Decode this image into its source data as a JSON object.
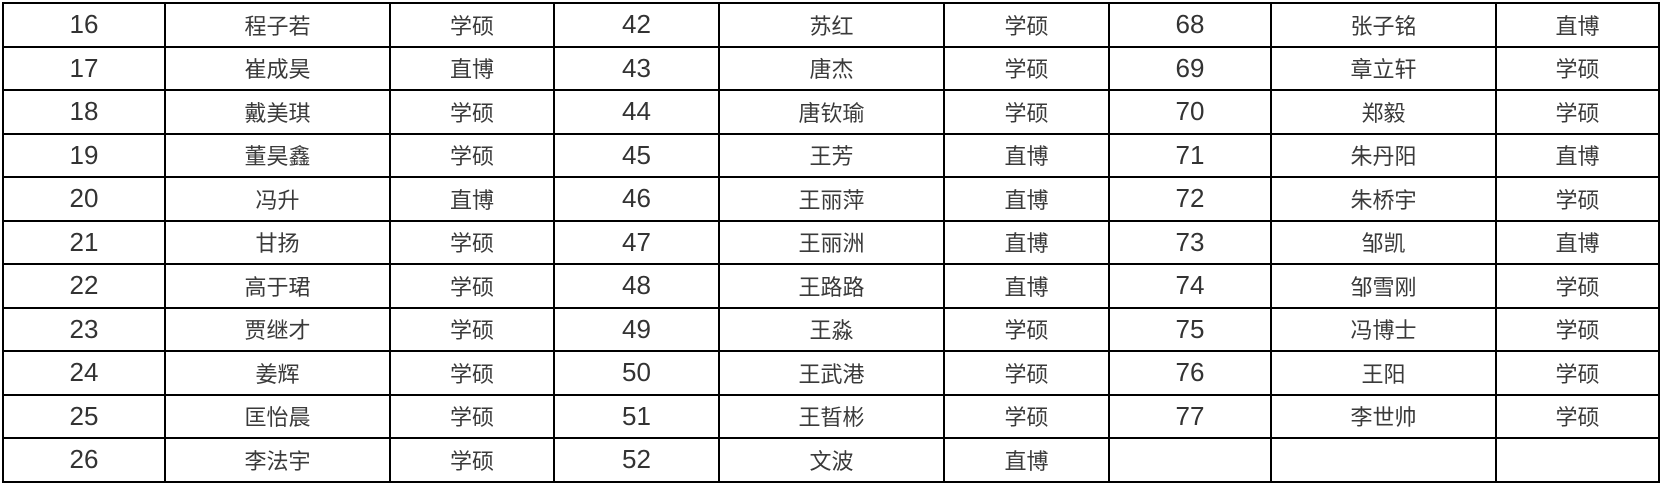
{
  "colors": {
    "text_cjk": "#3a3a3a",
    "text_num": "#333333",
    "border": "#000000",
    "background": "#ffffff"
  },
  "degree_values_used": [
    "学硕",
    "直博"
  ],
  "table": {
    "groups_per_row": 3,
    "rows": [
      {
        "cells": [
          {
            "no": "16",
            "name": "程子若",
            "type": "学硕"
          },
          {
            "no": "42",
            "name": "苏红",
            "type": "学硕"
          },
          {
            "no": "68",
            "name": "张子铭",
            "type": "直博"
          }
        ]
      },
      {
        "cells": [
          {
            "no": "17",
            "name": "崔成昊",
            "type": "直博"
          },
          {
            "no": "43",
            "name": "唐杰",
            "type": "学硕"
          },
          {
            "no": "69",
            "name": "章立轩",
            "type": "学硕"
          }
        ]
      },
      {
        "cells": [
          {
            "no": "18",
            "name": "戴美琪",
            "type": "学硕"
          },
          {
            "no": "44",
            "name": "唐钦瑜",
            "type": "学硕"
          },
          {
            "no": "70",
            "name": "郑毅",
            "type": "学硕"
          }
        ]
      },
      {
        "cells": [
          {
            "no": "19",
            "name": "董昊鑫",
            "type": "学硕"
          },
          {
            "no": "45",
            "name": "王芳",
            "type": "直博"
          },
          {
            "no": "71",
            "name": "朱丹阳",
            "type": "直博"
          }
        ]
      },
      {
        "cells": [
          {
            "no": "20",
            "name": "冯升",
            "type": "直博"
          },
          {
            "no": "46",
            "name": "王丽萍",
            "type": "直博"
          },
          {
            "no": "72",
            "name": "朱桥宇",
            "type": "学硕"
          }
        ]
      },
      {
        "cells": [
          {
            "no": "21",
            "name": "甘扬",
            "type": "学硕"
          },
          {
            "no": "47",
            "name": "王丽洲",
            "type": "直博"
          },
          {
            "no": "73",
            "name": "邹凯",
            "type": "直博"
          }
        ]
      },
      {
        "cells": [
          {
            "no": "22",
            "name": "高于珺",
            "type": "学硕"
          },
          {
            "no": "48",
            "name": "王路路",
            "type": "直博"
          },
          {
            "no": "74",
            "name": "邹雪刚",
            "type": "学硕"
          }
        ]
      },
      {
        "cells": [
          {
            "no": "23",
            "name": "贾继才",
            "type": "学硕"
          },
          {
            "no": "49",
            "name": "王淼",
            "type": "学硕"
          },
          {
            "no": "75",
            "name": "冯博士",
            "type": "学硕"
          }
        ]
      },
      {
        "cells": [
          {
            "no": "24",
            "name": "姜辉",
            "type": "学硕"
          },
          {
            "no": "50",
            "name": "王武港",
            "type": "学硕"
          },
          {
            "no": "76",
            "name": "王阳",
            "type": "学硕"
          }
        ]
      },
      {
        "cells": [
          {
            "no": "25",
            "name": "匡怡晨",
            "type": "学硕"
          },
          {
            "no": "51",
            "name": "王晢彬",
            "type": "学硕"
          },
          {
            "no": "77",
            "name": "李世帅",
            "type": "学硕"
          }
        ]
      },
      {
        "cells": [
          {
            "no": "26",
            "name": "李法宇",
            "type": "学硕"
          },
          {
            "no": "52",
            "name": "文波",
            "type": "直博"
          },
          {
            "no": "",
            "name": "",
            "type": ""
          }
        ]
      }
    ]
  }
}
